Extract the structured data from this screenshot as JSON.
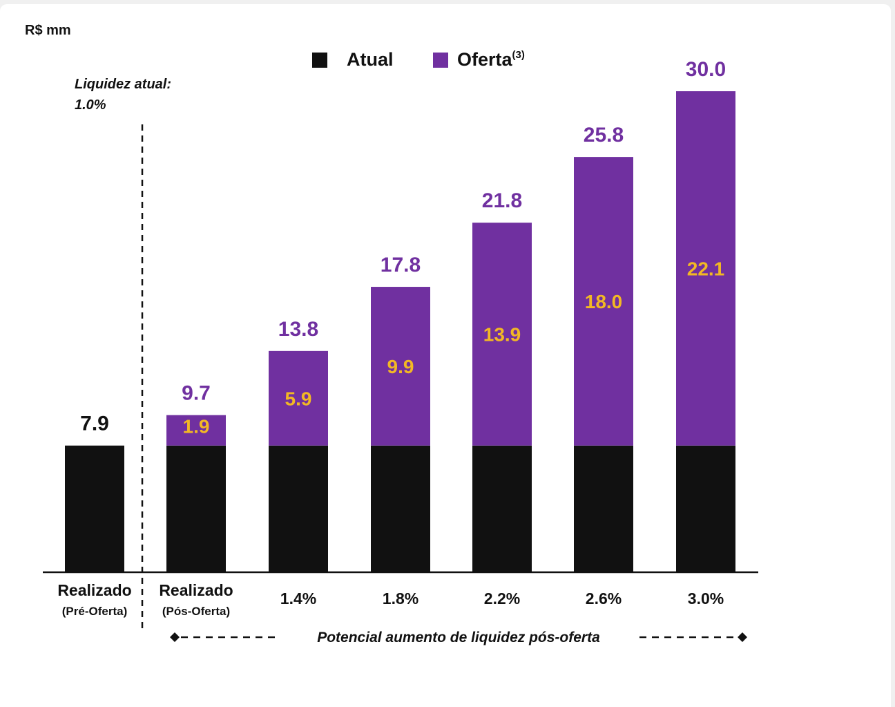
{
  "unit_label": "R$ mm",
  "annotation": {
    "line1": "Liquidez atual:",
    "line2": "1.0%"
  },
  "footer_note": "Potencial aumento de liquidez pós-oferta",
  "colors": {
    "atual": "#111111",
    "oferta": "#7030a0",
    "segment_label": "#f2b824",
    "total_label": "#7030a0",
    "standalone_total": "#111111"
  },
  "chart_data": {
    "type": "bar",
    "stacked": true,
    "title": "",
    "xlabel": "",
    "ylabel": "R$ mm",
    "ylim": [
      0,
      30
    ],
    "grid": false,
    "legend_position": "top",
    "categories": [
      {
        "line1": "Realizado",
        "line2": "(Pré-Oferta)"
      },
      {
        "line1": "Realizado",
        "line2": "(Pós-Oferta)"
      },
      {
        "line1": "1.4%",
        "line2": ""
      },
      {
        "line1": "1.8%",
        "line2": ""
      },
      {
        "line1": "2.2%",
        "line2": ""
      },
      {
        "line1": "2.6%",
        "line2": ""
      },
      {
        "line1": "3.0%",
        "line2": ""
      }
    ],
    "series": [
      {
        "name": "Atual",
        "values": [
          7.9,
          7.9,
          7.9,
          7.9,
          7.9,
          7.9,
          7.9
        ]
      },
      {
        "name": "Oferta",
        "name_superscript": "(3)",
        "values": [
          null,
          1.9,
          5.9,
          9.9,
          13.9,
          18.0,
          22.1
        ],
        "value_labels": [
          "",
          "1.9",
          "5.9",
          "9.9",
          "13.9",
          "18.0",
          "22.1"
        ]
      }
    ],
    "totals": [
      7.9,
      9.7,
      13.8,
      17.8,
      21.8,
      25.8,
      30.0
    ],
    "total_labels": [
      "7.9",
      "9.7",
      "13.8",
      "17.8",
      "21.8",
      "25.8",
      "30.0"
    ]
  }
}
